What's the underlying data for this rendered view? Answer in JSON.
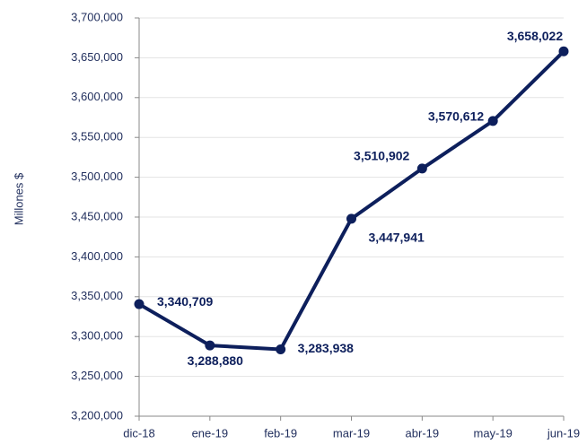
{
  "chart_data": {
    "type": "line",
    "y_label": "Millones $",
    "categories": [
      "dic-18",
      "ene-19",
      "feb-19",
      "mar-19",
      "abr-19",
      "may-19",
      "jun-19"
    ],
    "series": [
      {
        "name": null,
        "color": "#0d1f5c",
        "values": [
          3340709,
          3288880,
          3283938,
          3447941,
          3510902,
          3570612,
          3658022
        ],
        "value_labels": [
          "3,340,709",
          "3,288,880",
          "3,283,938",
          "3,447,941",
          "3,510,902",
          "3,570,612",
          "3,658,022"
        ]
      }
    ],
    "ylim": [
      3200000,
      3700000
    ],
    "yticks": [
      {
        "value": 3200000,
        "label": "3,200,000"
      },
      {
        "value": 3250000,
        "label": "3,250,000"
      },
      {
        "value": 3300000,
        "label": "3,300,000"
      },
      {
        "value": 3350000,
        "label": "3,350,000"
      },
      {
        "value": 3400000,
        "label": "3,400,000"
      },
      {
        "value": 3450000,
        "label": "3,450,000"
      },
      {
        "value": 3500000,
        "label": "3,500,000"
      },
      {
        "value": 3550000,
        "label": "3,550,000"
      },
      {
        "value": 3600000,
        "label": "3,600,000"
      },
      {
        "value": 3650000,
        "label": "3,650,000"
      },
      {
        "value": 3700000,
        "label": "3,700,000"
      }
    ],
    "grid": true
  }
}
